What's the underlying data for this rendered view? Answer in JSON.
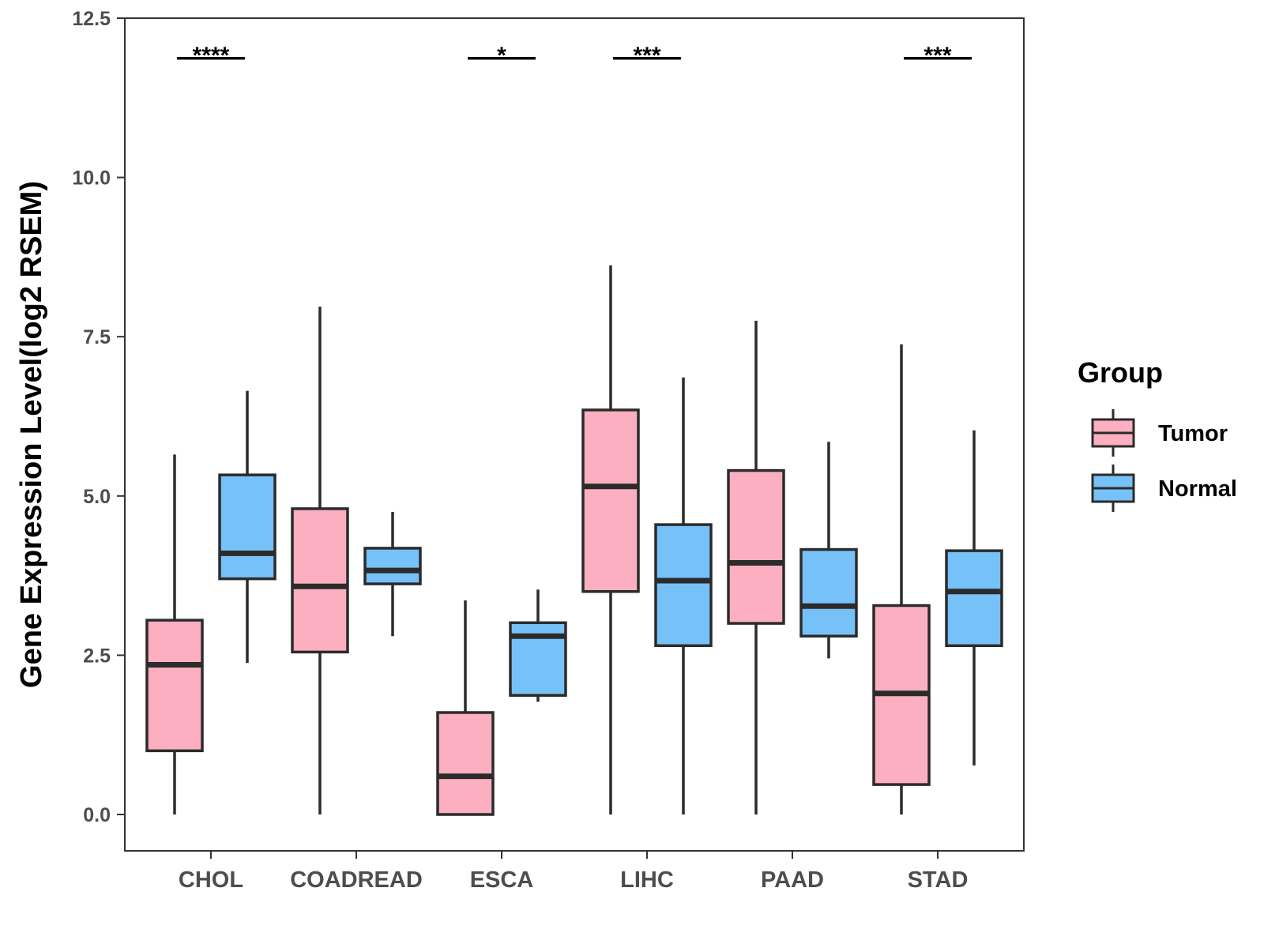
{
  "chart_data": {
    "type": "boxplot",
    "title": "",
    "xlabel": "",
    "ylabel": "Gene Expression Level(log2 RSEM)",
    "ylim": [
      -0.58,
      12.5
    ],
    "yticks": [
      "0.0",
      "2.5",
      "5.0",
      "7.5",
      "10.0",
      "12.5"
    ],
    "categories": [
      "CHOL",
      "COADREAD",
      "ESCA",
      "LIHC",
      "PAAD",
      "STAD"
    ],
    "legend": {
      "title": "Group",
      "position": "right"
    },
    "series": [
      {
        "name": "Tumor",
        "color": "#fbafc0",
        "boxes": [
          {
            "min": 0.0,
            "q1": 1.0,
            "median": 2.35,
            "q3": 3.05,
            "max": 5.65
          },
          {
            "min": 0.0,
            "q1": 2.55,
            "median": 3.58,
            "q3": 4.8,
            "max": 7.97
          },
          {
            "min": 0.0,
            "q1": 0.0,
            "median": 0.6,
            "q3": 1.6,
            "max": 3.36
          },
          {
            "min": 0.0,
            "q1": 3.5,
            "median": 5.15,
            "q3": 6.35,
            "max": 8.62
          },
          {
            "min": 0.0,
            "q1": 3.0,
            "median": 3.95,
            "q3": 5.4,
            "max": 7.75
          },
          {
            "min": 0.0,
            "q1": 0.47,
            "median": 1.9,
            "q3": 3.28,
            "max": 7.38
          }
        ]
      },
      {
        "name": "Normal",
        "color": "#77c1f9",
        "boxes": [
          {
            "min": 2.38,
            "q1": 3.7,
            "median": 4.1,
            "q3": 5.33,
            "max": 6.65
          },
          {
            "min": 2.8,
            "q1": 3.62,
            "median": 3.83,
            "q3": 4.18,
            "max": 4.75
          },
          {
            "min": 1.77,
            "q1": 1.87,
            "median": 2.8,
            "q3": 3.01,
            "max": 3.53
          },
          {
            "min": 0.0,
            "q1": 2.65,
            "median": 3.67,
            "q3": 4.55,
            "max": 6.86
          },
          {
            "min": 2.45,
            "q1": 2.8,
            "median": 3.27,
            "q3": 4.16,
            "max": 5.85
          },
          {
            "min": 0.77,
            "q1": 2.65,
            "median": 3.5,
            "q3": 4.14,
            "max": 6.03
          }
        ]
      }
    ],
    "annotations": [
      {
        "category": "CHOL",
        "label": "****",
        "y": 11.87
      },
      {
        "category": "ESCA",
        "label": "*",
        "y": 11.87
      },
      {
        "category": "LIHC",
        "label": "***",
        "y": 11.87
      },
      {
        "category": "STAD",
        "label": "***",
        "y": 11.87
      }
    ]
  }
}
